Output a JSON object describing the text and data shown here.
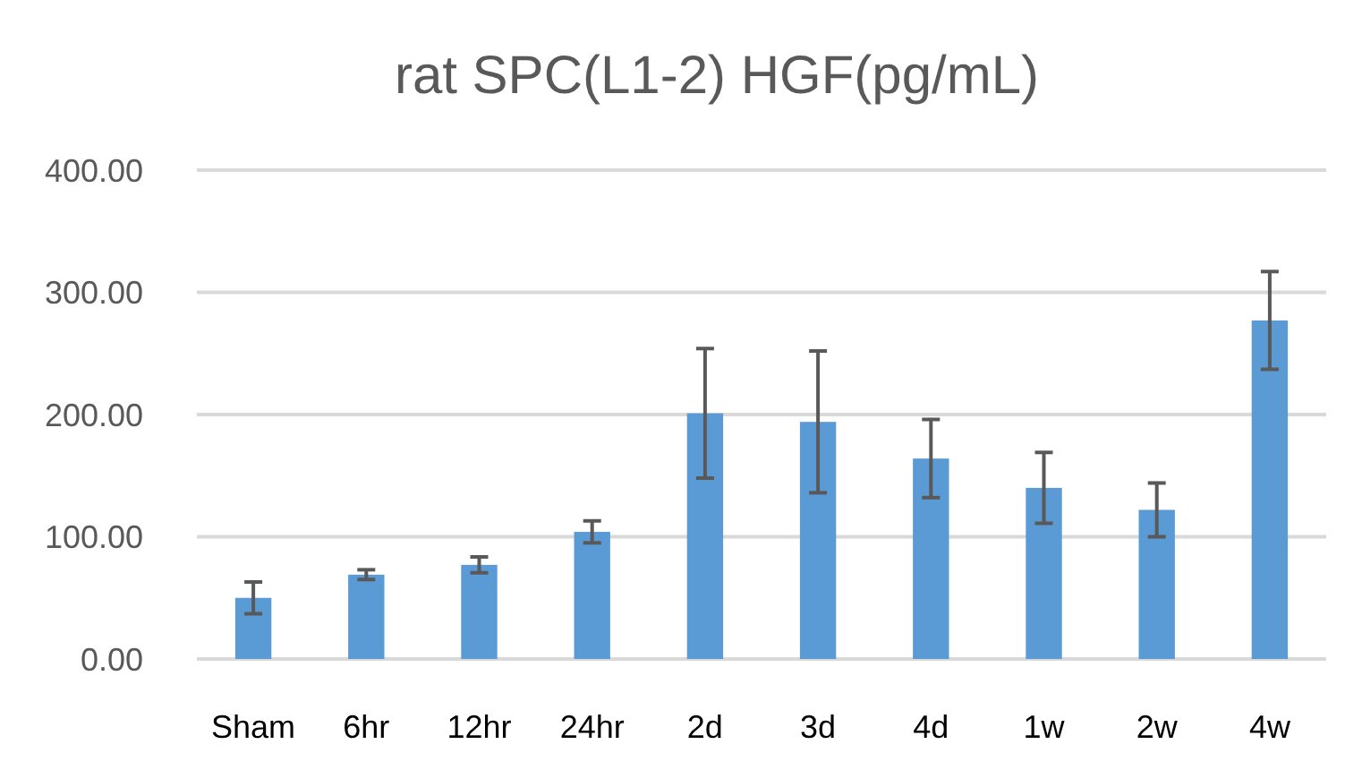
{
  "chart_data": {
    "type": "bar",
    "title": "rat SPC(L1-2) HGF(pg/mL)",
    "categories": [
      "Sham",
      "6hr",
      "12hr",
      "24hr",
      "2d",
      "3d",
      "4d",
      "1w",
      "2w",
      "4w"
    ],
    "values": [
      50,
      69,
      77,
      104,
      201,
      194,
      164,
      140,
      122,
      277
    ],
    "errors": [
      13,
      4,
      6.5,
      9,
      53,
      58,
      32,
      29,
      22,
      40
    ],
    "color": "#5b9bd5",
    "ylim": [
      0,
      400
    ],
    "yticks": [
      {
        "value": 0,
        "label": "0.00"
      },
      {
        "value": 100,
        "label": "100.00"
      },
      {
        "value": 200,
        "label": "200.00"
      },
      {
        "value": 300,
        "label": "300.00"
      },
      {
        "value": 400,
        "label": "400.00"
      }
    ],
    "grid": "y"
  }
}
